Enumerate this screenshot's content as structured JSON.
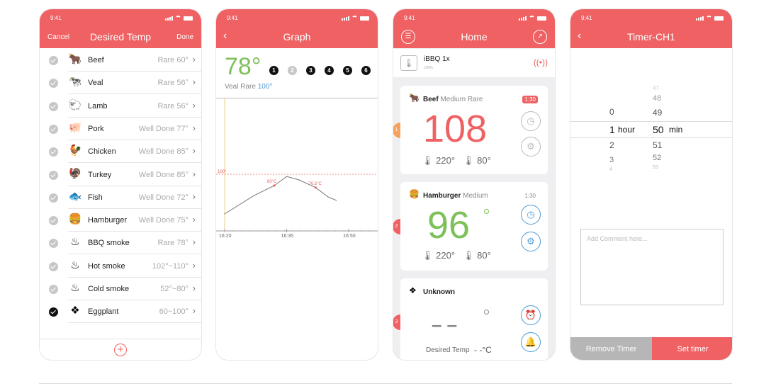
{
  "status_time": "9:41",
  "colors": {
    "accent": "#ef6163",
    "green": "#7ec05a",
    "blue": "#4f9ad6",
    "gray_button": "#b6b6b6"
  },
  "screen1": {
    "cancel": "Cancel",
    "title": "Desired Temp",
    "done": "Done",
    "items": [
      {
        "name": "Beef",
        "value": "Rare  60°",
        "icon": "cow-icon",
        "glyph": "🐂",
        "checked": false
      },
      {
        "name": "Veal",
        "value": "Rare  56°",
        "icon": "calf-icon",
        "glyph": "🐄",
        "checked": false
      },
      {
        "name": "Lamb",
        "value": "Rare  56°",
        "icon": "lamb-icon",
        "glyph": "🐑",
        "checked": false
      },
      {
        "name": "Pork",
        "value": "Well Done  77°",
        "icon": "pig-icon",
        "glyph": "🐖",
        "checked": false
      },
      {
        "name": "Chicken",
        "value": "Well Done  85°",
        "icon": "chicken-icon",
        "glyph": "🐓",
        "checked": false
      },
      {
        "name": "Turkey",
        "value": "Well Done  85°",
        "icon": "turkey-icon",
        "glyph": "🦃",
        "checked": false
      },
      {
        "name": "Fish",
        "value": "Well Done  72°",
        "icon": "fish-icon",
        "glyph": "🐟",
        "checked": false
      },
      {
        "name": "Hamburger",
        "value": "Well Done  75°",
        "icon": "hamburger-icon",
        "glyph": "🍔",
        "checked": false
      },
      {
        "name": "BBQ smoke",
        "value": "Rare  78°",
        "icon": "bbq-icon",
        "glyph": "♨",
        "checked": false
      },
      {
        "name": "Hot smoke",
        "value": "102°~110°",
        "icon": "hot-smoke-icon",
        "glyph": "♨",
        "checked": false
      },
      {
        "name": "Cold smoke",
        "value": "52°~80°",
        "icon": "cold-smoke-icon",
        "glyph": "♨",
        "checked": false
      },
      {
        "name": "Eggplant",
        "value": "60~100°",
        "icon": "eggplant-icon",
        "glyph": "❖",
        "checked": true
      }
    ],
    "add_icon": "+"
  },
  "screen2": {
    "title": "Graph",
    "temperature": "78°",
    "probes": [
      "1",
      "2",
      "3",
      "4",
      "5",
      "6"
    ],
    "inactive_probe": "2",
    "food": "Veal",
    "doneness": "Rare",
    "target": "100°",
    "chart_data": {
      "type": "line",
      "title": "",
      "xlabel": "",
      "ylabel": "",
      "x_ticks": [
        "16:20",
        "16:35",
        "16:50"
      ],
      "threshold_label": "100°",
      "annotations": [
        "80°C",
        "76.5°C"
      ],
      "series": [
        {
          "values": [
            {
              "x": "16:20",
              "y": 30
            },
            {
              "x": "16:27",
              "y": 62
            },
            {
              "x": "16:32",
              "y": 80
            },
            {
              "x": "16:35",
              "y": 96
            },
            {
              "x": "16:38",
              "y": 90
            },
            {
              "x": "16:42",
              "y": 76.5
            },
            {
              "x": "16:45",
              "y": 60
            },
            {
              "x": "16:47",
              "y": 54
            }
          ]
        }
      ]
    }
  },
  "screen3": {
    "title": "Home",
    "device_name": "iBBQ 1x",
    "battery": "100%",
    "cards": [
      {
        "index": "1",
        "name": "Beef",
        "doneness": "Medium Rare",
        "time": "1:30",
        "time_active": true,
        "value": "108",
        "color": "#ef6163",
        "set_temp": "220°",
        "target_temp": "80°",
        "icon": "cow-icon"
      },
      {
        "index": "2",
        "name": "Hamburger",
        "doneness": "Medium",
        "time": "1:30",
        "time_active": false,
        "value": "96",
        "color": "#7ec05a",
        "set_temp": "220°",
        "target_temp": "80°",
        "icon": "hamburger-icon"
      },
      {
        "index": "3",
        "name": "Unknown",
        "doneness": "",
        "value": "– –",
        "desired_label": "Desired Temp",
        "desired_value": "- -°C",
        "icon": "diamond-icon"
      }
    ]
  },
  "screen4": {
    "title": "Timer-CH1",
    "hours": [
      "0",
      "1",
      "2",
      "3",
      "4"
    ],
    "hour_unit": "hour",
    "minutes": [
      "47",
      "48",
      "49",
      "50",
      "51",
      "52",
      "53"
    ],
    "minute_unit": "min",
    "selected_hour": "1",
    "selected_minute": "50",
    "comment_placeholder": "Add Comment here...",
    "remove": "Remove Timer",
    "set": "Set timer"
  }
}
